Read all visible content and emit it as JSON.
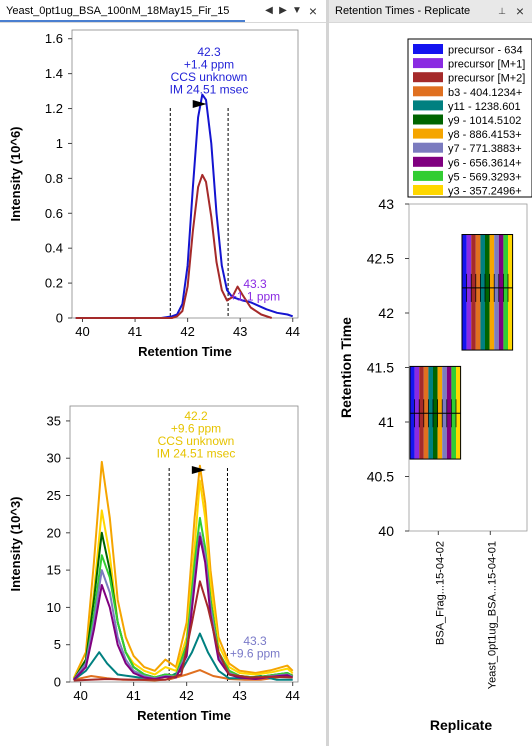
{
  "left_pane": {
    "tab_title": "Yeast_0pt1ug_BSA_100nM_18May15_Fir_15",
    "prev_icon": "◀",
    "next_icon": "▶",
    "menu_icon": "▼",
    "close_icon": "×"
  },
  "right_pane": {
    "tab_title": "Retention Times - Replicate",
    "pin_icon": "📌",
    "close_icon": "×"
  },
  "chart_data": [
    {
      "type": "line",
      "ylabel": "Intensity (10^6)",
      "xlabel": "Retention Time",
      "xlim": [
        39.8,
        44.1
      ],
      "ylim": [
        0,
        1.65
      ],
      "xticks": [
        "40",
        "41",
        "42",
        "43",
        "44"
      ],
      "yticks": [
        "0",
        "0.2",
        "0.4",
        "0.6",
        "0.8",
        "1",
        "1.2",
        "1.4",
        "1.6"
      ],
      "boundaries": [
        41.67,
        42.77
      ],
      "peak_marker_x": 42.23,
      "annotations": [
        {
          "lines": [
            "42.3",
            "+1.4 ppm",
            "CCS unknown",
            "IM 24.51 msec"
          ],
          "color": "#2424d8"
        },
        {
          "lines": [
            "43.3",
            "+1.1 ppm"
          ],
          "color": "#8a2be2"
        }
      ],
      "series": [
        {
          "color": "#1414d0",
          "x": [
            39.87,
            41.0,
            41.5,
            41.7,
            41.8,
            41.9,
            42.0,
            42.1,
            42.2,
            42.28,
            42.35,
            42.45,
            42.55,
            42.65,
            42.75,
            42.85,
            42.95,
            43.05,
            43.2,
            43.35,
            43.5,
            43.7,
            43.9,
            44.0
          ],
          "values": [
            0.0,
            0.0,
            0.0,
            0.01,
            0.02,
            0.08,
            0.3,
            0.75,
            1.15,
            1.28,
            1.25,
            1.0,
            0.6,
            0.3,
            0.16,
            0.12,
            0.11,
            0.1,
            0.09,
            0.07,
            0.05,
            0.03,
            0.02,
            0.01
          ]
        },
        {
          "color": "#a52a2a",
          "x": [
            39.87,
            41.0,
            41.5,
            41.7,
            41.8,
            41.9,
            42.0,
            42.1,
            42.2,
            42.28,
            42.35,
            42.45,
            42.55,
            42.65,
            42.75,
            42.85,
            42.95,
            43.05,
            43.2,
            43.4,
            43.6
          ],
          "values": [
            0.0,
            0.0,
            0.0,
            0.0,
            0.01,
            0.04,
            0.18,
            0.5,
            0.75,
            0.82,
            0.78,
            0.58,
            0.32,
            0.16,
            0.1,
            0.12,
            0.18,
            0.13,
            0.06,
            0.02,
            0.0
          ]
        }
      ]
    },
    {
      "type": "line",
      "ylabel": "Intensity (10^3)",
      "xlabel": "Retention Time",
      "xlim": [
        39.8,
        44.1
      ],
      "ylim": [
        0,
        37
      ],
      "xticks": [
        "40",
        "41",
        "42",
        "43",
        "44"
      ],
      "yticks": [
        "0",
        "5",
        "10",
        "15",
        "20",
        "25",
        "30",
        "35"
      ],
      "boundaries": [
        41.67,
        42.77
      ],
      "peak_marker_x": 42.23,
      "annotations": [
        {
          "lines": [
            "42.2",
            "+9.6 ppm",
            "CCS unknown",
            "IM 24.51 msec"
          ],
          "color": "#e6c300"
        },
        {
          "lines": [
            "43.3",
            "+9.6 ppm"
          ],
          "color": "#7a7ac8"
        }
      ],
      "series": [
        {
          "name": "b3",
          "color": "#e07020",
          "x": [
            39.87,
            40.2,
            40.5,
            40.8,
            41.1,
            41.4,
            41.7,
            42.0,
            42.25,
            42.5,
            42.8,
            43.1,
            43.4,
            43.7,
            44.0
          ],
          "values": [
            0.3,
            0.8,
            0.5,
            0.3,
            0.3,
            0.2,
            0.4,
            1.0,
            1.6,
            0.8,
            0.4,
            0.3,
            0.3,
            0.6,
            1.0
          ]
        },
        {
          "name": "y8",
          "color": "#f5a500",
          "x": [
            39.87,
            40.1,
            40.25,
            40.4,
            40.55,
            40.7,
            40.85,
            41.0,
            41.2,
            41.4,
            41.6,
            41.8,
            42.0,
            42.15,
            42.25,
            42.35,
            42.45,
            42.6,
            42.8,
            43.0,
            43.3,
            43.6,
            43.9,
            44.0
          ],
          "values": [
            0.5,
            4,
            16,
            29.5,
            22,
            11,
            6,
            3.5,
            2,
            1.5,
            3,
            2,
            8,
            22,
            29,
            24,
            15,
            6,
            2.5,
            1.5,
            1.2,
            1.6,
            2.2,
            1.5
          ]
        },
        {
          "name": "y3",
          "color": "#ffd700",
          "x": [
            39.87,
            40.1,
            40.25,
            40.4,
            40.55,
            40.7,
            40.85,
            41.0,
            41.2,
            41.4,
            41.6,
            41.8,
            42.0,
            42.15,
            42.25,
            42.35,
            42.45,
            42.6,
            42.8,
            43.0,
            43.3,
            43.6,
            43.9,
            44.0
          ],
          "values": [
            0.5,
            3,
            12,
            23,
            17,
            8,
            4,
            2.5,
            1.5,
            1,
            2,
            1.5,
            6,
            18,
            27,
            22,
            13,
            5,
            2,
            1.2,
            1,
            1.3,
            1.8,
            1.2
          ]
        },
        {
          "name": "y11",
          "color": "#008080",
          "x": [
            39.87,
            40.1,
            40.2,
            40.35,
            40.5,
            40.7,
            40.9,
            41.1,
            41.4,
            41.7,
            41.9,
            42.1,
            42.25,
            42.4,
            42.6,
            42.8,
            43.1,
            43.4,
            43.7,
            44.0
          ],
          "values": [
            0.3,
            1.5,
            2.5,
            4,
            2.5,
            1,
            0.8,
            0.6,
            0.5,
            0.8,
            1.5,
            4,
            6.5,
            4,
            1.5,
            0.5,
            0.5,
            0.8,
            0.3,
            0.3
          ]
        },
        {
          "name": "y9",
          "color": "#006400",
          "x": [
            39.87,
            40.1,
            40.25,
            40.4,
            40.55,
            40.7,
            40.85,
            41.0,
            41.2,
            41.4,
            41.6,
            41.8,
            42.0,
            42.15,
            42.25,
            42.35,
            42.45,
            42.6,
            42.8,
            43.0,
            43.3,
            43.6,
            43.9,
            44.0
          ],
          "values": [
            0.3,
            3,
            11,
            20,
            15,
            8,
            4,
            2,
            1,
            0.6,
            1,
            0.8,
            5,
            15,
            19,
            17,
            11,
            4,
            1.5,
            0.8,
            0.6,
            0.9,
            1.2,
            0.8
          ]
        },
        {
          "name": "y5",
          "color": "#32cd32",
          "x": [
            39.87,
            40.1,
            40.25,
            40.4,
            40.55,
            40.7,
            40.85,
            41.0,
            41.2,
            41.4,
            41.6,
            41.8,
            42.0,
            42.15,
            42.25,
            42.35,
            42.45,
            42.6,
            42.8,
            43.0,
            43.3,
            43.6,
            43.9,
            44.0
          ],
          "values": [
            0.3,
            2.5,
            9,
            17,
            14,
            8,
            4,
            2,
            1,
            0.6,
            1,
            0.8,
            5,
            16,
            22,
            18,
            11,
            4,
            1.5,
            0.8,
            0.6,
            0.9,
            1.2,
            0.8
          ]
        },
        {
          "name": "y7",
          "color": "#7b7bbf",
          "x": [
            39.87,
            40.1,
            40.25,
            40.4,
            40.55,
            40.7,
            40.85,
            41.0,
            41.2,
            41.4,
            41.6,
            41.8,
            42.0,
            42.15,
            42.25,
            42.35,
            42.45,
            42.6,
            42.8,
            43.0,
            43.3,
            43.6,
            43.9,
            44.0
          ],
          "values": [
            0.3,
            2.5,
            8,
            15,
            12,
            6,
            3,
            1.5,
            0.8,
            0.5,
            0.8,
            0.7,
            4,
            14,
            20,
            17,
            10,
            3.5,
            1.2,
            0.7,
            0.5,
            0.8,
            1,
            0.7
          ]
        },
        {
          "name": "y6",
          "color": "#800080",
          "x": [
            39.87,
            40.1,
            40.25,
            40.4,
            40.55,
            40.7,
            40.85,
            41.0,
            41.2,
            41.4,
            41.6,
            41.8,
            42.0,
            42.15,
            42.25,
            42.35,
            42.45,
            42.6,
            42.8,
            43.0,
            43.3,
            43.6,
            43.9,
            44.0
          ],
          "values": [
            0.3,
            2,
            7,
            13,
            10,
            5,
            2.5,
            1.2,
            0.6,
            0.4,
            0.7,
            0.6,
            3.5,
            13,
            19.5,
            16,
            9,
            3,
            1,
            0.6,
            0.4,
            0.7,
            0.9,
            0.6
          ]
        },
        {
          "name": "precursor [M+2]",
          "color": "#a52a2a",
          "x": [
            39.87,
            40.5,
            41.0,
            41.6,
            41.9,
            42.1,
            42.25,
            42.4,
            42.6,
            42.8,
            43.2,
            43.6,
            44.0
          ],
          "values": [
            0.2,
            0.4,
            0.3,
            0.3,
            1,
            8,
            13.5,
            10,
            4,
            1,
            0.6,
            0.7,
            0.6
          ]
        }
      ]
    },
    {
      "type": "box",
      "xlabel": "Replicate",
      "ylabel": "Retention Time",
      "ylim": [
        40,
        43
      ],
      "yticks": [
        "40",
        "40.5",
        "41",
        "41.5",
        "42",
        "42.5",
        "43"
      ],
      "categories": [
        "BSA_Frag...15-04-02",
        "Yeast_0pt1ug_BSA...15-04-01"
      ],
      "legend": [
        {
          "label": "precursor - 634",
          "color": "#1414f0"
        },
        {
          "label": "precursor [M+1]",
          "color": "#8a2be2"
        },
        {
          "label": "precursor [M+2]",
          "color": "#a52a2a"
        },
        {
          "label": "b3 - 404.1234+",
          "color": "#e07020"
        },
        {
          "label": "y11 - 1238.601",
          "color": "#008080"
        },
        {
          "label": "y9 - 1014.5102",
          "color": "#006400"
        },
        {
          "label": "y8 - 886.4153+",
          "color": "#f5a500"
        },
        {
          "label": "y7 - 771.3883+",
          "color": "#7b7bbf"
        },
        {
          "label": "y6 - 656.3614+",
          "color": "#800080"
        },
        {
          "label": "y5 - 569.3293+",
          "color": "#32cd32"
        },
        {
          "label": "y3 - 357.2496+",
          "color": "#ffd700"
        }
      ],
      "boxes": [
        {
          "category": "BSA_Frag...15-04-02",
          "low": 40.66,
          "high": 41.51,
          "median": 41.08
        },
        {
          "category": "Yeast_0pt1ug_BSA...15-04-01",
          "low": 41.66,
          "high": 42.72,
          "median": 42.23
        }
      ]
    }
  ]
}
